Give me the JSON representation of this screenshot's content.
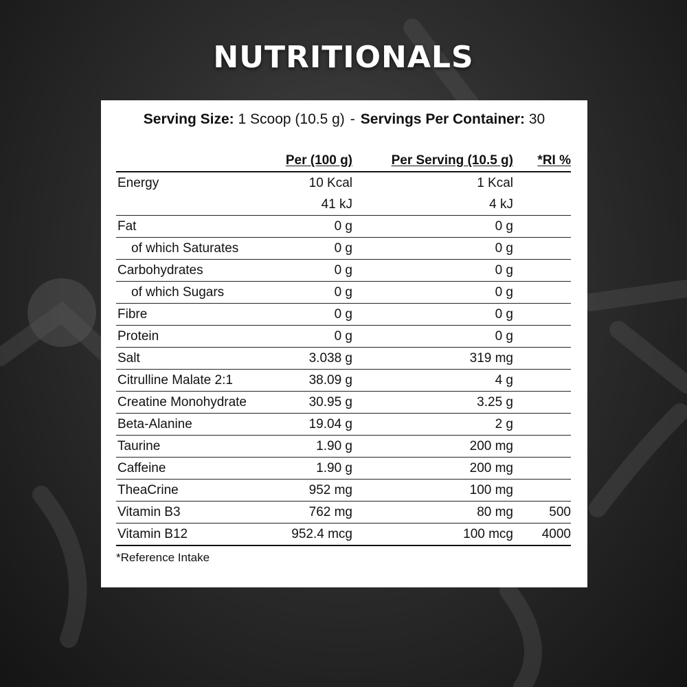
{
  "title": "NUTRITIONALS",
  "serving": {
    "size_label": "Serving Size:",
    "size_value": "1 Scoop (10.5 g)",
    "separator": "-",
    "per_container_label": "Servings Per Container:",
    "per_container_value": "30"
  },
  "table": {
    "headers": [
      "",
      "Per (100 g)",
      "Per Serving (10.5 g)",
      "*RI %"
    ],
    "energy": {
      "name": "Energy",
      "kcal_100": "10 Kcal",
      "kcal_serving": "1 Kcal",
      "kj_100": "41 kJ",
      "kj_serving": "4 kJ"
    },
    "rows": [
      {
        "name": "Fat",
        "per100": "0 g",
        "serving": "0 g",
        "ri": ""
      },
      {
        "name": "of which Saturates",
        "per100": "0 g",
        "serving": "0 g",
        "ri": ""
      },
      {
        "name": "Carbohydrates",
        "per100": "0 g",
        "serving": "0 g",
        "ri": ""
      },
      {
        "name": "of which Sugars",
        "per100": "0 g",
        "serving": "0 g",
        "ri": ""
      },
      {
        "name": "Fibre",
        "per100": "0 g",
        "serving": "0 g",
        "ri": ""
      },
      {
        "name": "Protein",
        "per100": "0 g",
        "serving": "0 g",
        "ri": ""
      },
      {
        "name": "Salt",
        "per100": "3.038 g",
        "serving": "319 mg",
        "ri": ""
      },
      {
        "name": "Citrulline Malate 2:1",
        "per100": "38.09 g",
        "serving": "4 g",
        "ri": ""
      },
      {
        "name": "Creatine Monohydrate",
        "per100": "30.95 g",
        "serving": "3.25 g",
        "ri": ""
      },
      {
        "name": "Beta-Alanine",
        "per100": "19.04 g",
        "serving": "2 g",
        "ri": ""
      },
      {
        "name": "Taurine",
        "per100": "1.90 g",
        "serving": "200 mg",
        "ri": ""
      },
      {
        "name": "Caffeine",
        "per100": "1.90 g",
        "serving": "200 mg",
        "ri": ""
      },
      {
        "name": "TheaCrine",
        "per100": "952 mg",
        "serving": "100 mg",
        "ri": ""
      },
      {
        "name": "Vitamin B3",
        "per100": "762 mg",
        "serving": "80 mg",
        "ri": "500"
      },
      {
        "name": "Vitamin B12",
        "per100": "952.4 mcg",
        "serving": "100 mcg",
        "ri": "4000"
      }
    ]
  },
  "footnote": "*Reference Intake",
  "colors": {
    "background": "#2e2e2e",
    "panel": "#ffffff",
    "text": "#111111",
    "title": "#ffffff"
  }
}
